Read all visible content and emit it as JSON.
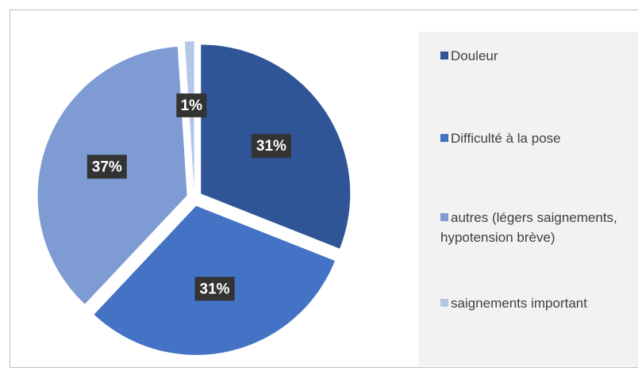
{
  "chart_data": {
    "type": "pie",
    "categories": [
      "Douleur",
      "Difficulté à la pose",
      "autres (légers saignements, hypotension brève)",
      "saignements important"
    ],
    "values": [
      31,
      31,
      37,
      1
    ],
    "value_labels": [
      "31%",
      "31%",
      "37%",
      "1%"
    ],
    "colors": [
      "#2f5597",
      "#4472c4",
      "#7f9bd3",
      "#b4c7e7"
    ],
    "legend": "right"
  }
}
